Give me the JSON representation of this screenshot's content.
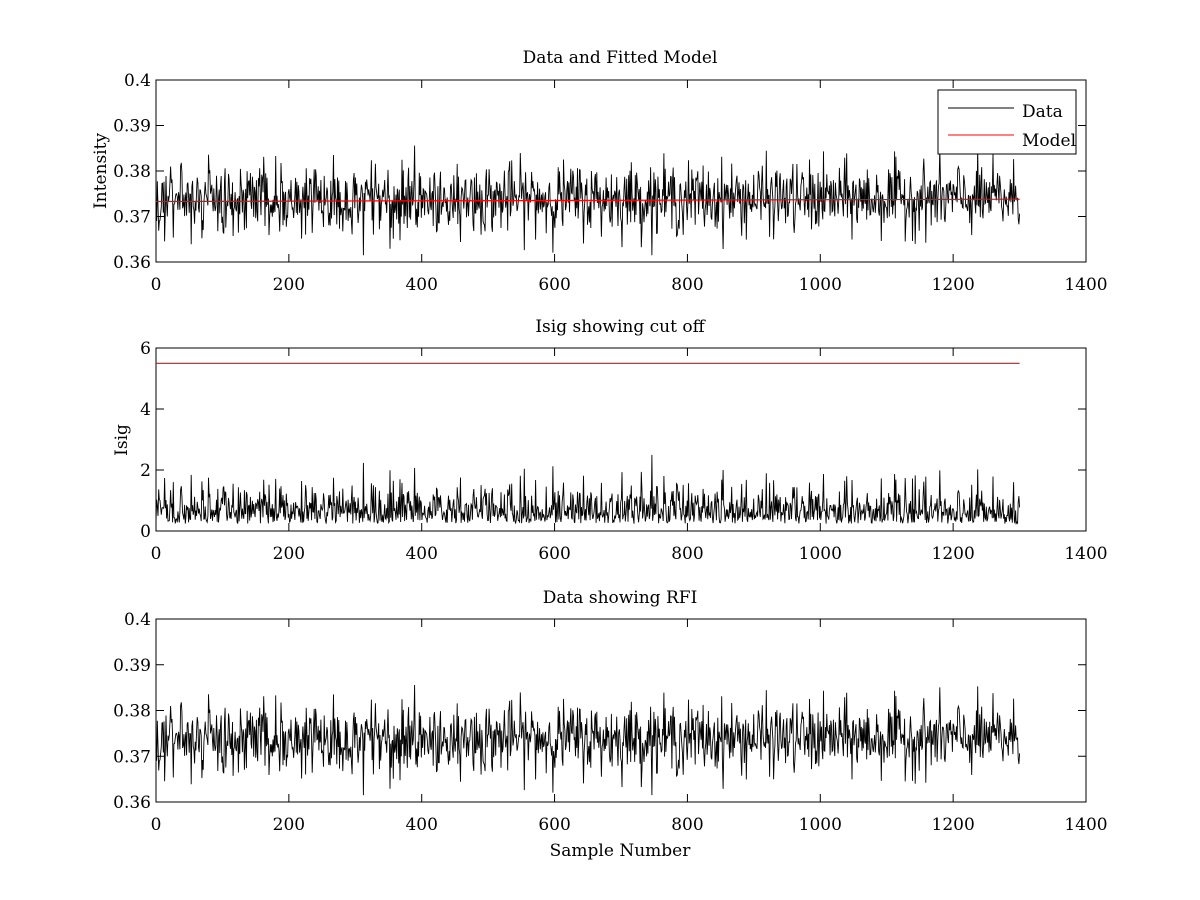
{
  "chart_data": [
    {
      "type": "line",
      "title": "Data and Fitted Model",
      "xlabel": "",
      "ylabel": "Intensity",
      "xlim": [
        0,
        1400
      ],
      "ylim": [
        0.36,
        0.4
      ],
      "xticks": [
        0,
        200,
        400,
        600,
        800,
        1000,
        1200,
        1400
      ],
      "yticks": [
        0.36,
        0.37,
        0.38,
        0.39,
        0.4
      ],
      "xtick_labels": [
        "0",
        "200",
        "400",
        "600",
        "800",
        "1000",
        "1200",
        "1400"
      ],
      "ytick_labels": [
        "0.36",
        "0.37",
        "0.38",
        "0.39",
        "0.4"
      ],
      "legend": {
        "placement": "top-right",
        "entries": [
          "Data",
          "Model"
        ]
      },
      "series": [
        {
          "name": "Data",
          "color": "#000000",
          "kind": "noise",
          "x_start": 0,
          "x_end": 1300,
          "n_points": 1300,
          "mean": 0.374,
          "std": 0.0038,
          "min": 0.3615,
          "max": 0.3865
        },
        {
          "name": "Model",
          "color": "#ff0000",
          "kind": "constant",
          "x": [
            0,
            1300
          ],
          "y": [
            0.3733,
            0.3738
          ]
        }
      ]
    },
    {
      "type": "line",
      "title": "Isig showing cut off",
      "xlabel": "",
      "ylabel": "Isig",
      "xlim": [
        0,
        1400
      ],
      "ylim": [
        0,
        6
      ],
      "xticks": [
        0,
        200,
        400,
        600,
        800,
        1000,
        1200,
        1400
      ],
      "yticks": [
        0,
        2,
        4,
        6
      ],
      "xtick_labels": [
        "0",
        "200",
        "400",
        "600",
        "800",
        "1000",
        "1200",
        "1400"
      ],
      "ytick_labels": [
        "0",
        "2",
        "4",
        "6"
      ],
      "series": [
        {
          "color": "#000000",
          "kind": "abs-noise",
          "x_start": 0,
          "x_end": 1300,
          "n_points": 1300,
          "mean": 0.8,
          "std": 0.6,
          "min": 0,
          "max": 3.25
        },
        {
          "color": "#ff0000",
          "kind": "constant",
          "x": [
            0,
            1300
          ],
          "y": [
            5.5,
            5.5
          ]
        }
      ]
    },
    {
      "type": "line",
      "title": "Data showing RFI",
      "xlabel": "Sample Number",
      "ylabel": "",
      "xlim": [
        0,
        1400
      ],
      "ylim": [
        0.36,
        0.4
      ],
      "xticks": [
        0,
        200,
        400,
        600,
        800,
        1000,
        1200,
        1400
      ],
      "yticks": [
        0.36,
        0.37,
        0.38,
        0.39,
        0.4
      ],
      "xtick_labels": [
        "0",
        "200",
        "400",
        "600",
        "800",
        "1000",
        "1200",
        "1400"
      ],
      "ytick_labels": [
        "0.36",
        "0.37",
        "0.38",
        "0.39",
        "0.4"
      ],
      "series": [
        {
          "color": "#000000",
          "kind": "noise",
          "x_start": 0,
          "x_end": 1300,
          "n_points": 1300,
          "mean": 0.374,
          "std": 0.0038,
          "min": 0.3615,
          "max": 0.3865
        }
      ]
    }
  ]
}
